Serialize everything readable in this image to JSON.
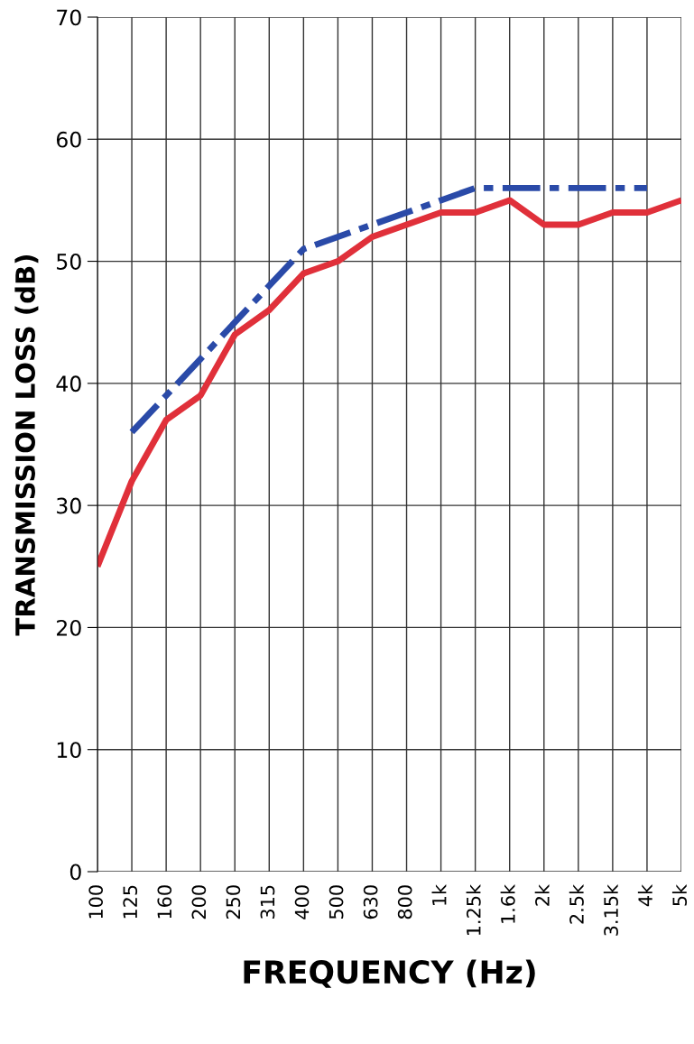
{
  "chart_data": {
    "type": "line",
    "xlabel": "FREQUENCY (Hz)",
    "ylabel": "TRANSMISSION LOSS (dB)",
    "categories": [
      "100",
      "125",
      "160",
      "200",
      "250",
      "315",
      "400",
      "500",
      "630",
      "800",
      "1k",
      "1.25k",
      "1.6k",
      "2k",
      "2.5k",
      "3.15k",
      "4k",
      "5k"
    ],
    "series": [
      {
        "color": "#e0303a",
        "line_style": "solid",
        "values": [
          25,
          32,
          37,
          39,
          44,
          46,
          49,
          50,
          52,
          53,
          54,
          54,
          55,
          53,
          53,
          54,
          54,
          55
        ]
      },
      {
        "color": "#2a4aa8",
        "line_style": "dashdot",
        "values": [
          null,
          36,
          39,
          42,
          45,
          48,
          51,
          52,
          53,
          54,
          55,
          56,
          56,
          56,
          56,
          56,
          56,
          null
        ]
      }
    ],
    "ylim": [
      0,
      70
    ],
    "yticks": [
      0,
      10,
      20,
      30,
      40,
      50,
      60,
      70
    ],
    "grid": true,
    "marker": "none"
  }
}
